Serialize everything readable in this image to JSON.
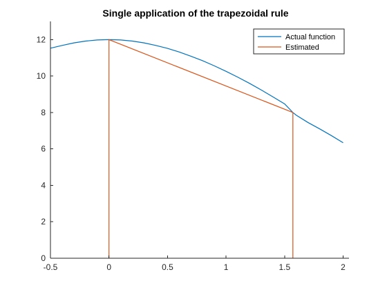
{
  "chart_data": {
    "type": "line",
    "title": "Single application of the trapezoidal rule",
    "xlabel": "",
    "ylabel": "",
    "xlim": [
      -0.5,
      2.05
    ],
    "ylim": [
      0,
      13
    ],
    "xticks": [
      -0.5,
      0,
      0.5,
      1,
      1.5,
      2
    ],
    "xtick_labels": [
      "-0.5",
      "0",
      "0.5",
      "1",
      "1.5",
      "2"
    ],
    "yticks": [
      0,
      2,
      4,
      6,
      8,
      10,
      12
    ],
    "ytick_labels": [
      "0",
      "2",
      "4",
      "6",
      "8",
      "10",
      "12"
    ],
    "grid": false,
    "legend_position": "top-right",
    "series": [
      {
        "name": "Actual function",
        "color": "#0072BD",
        "x": [
          -0.5,
          -0.4,
          -0.3,
          -0.2,
          -0.1,
          0,
          0.1,
          0.2,
          0.3,
          0.4,
          0.5,
          0.6,
          0.7,
          0.8,
          0.9,
          1.0,
          1.1,
          1.2,
          1.3,
          1.4,
          1.5,
          1.5708,
          1.6,
          1.7,
          1.8,
          1.9,
          2.0
        ],
        "y": [
          11.53,
          11.68,
          11.82,
          11.92,
          11.98,
          12.0,
          11.98,
          11.92,
          11.82,
          11.68,
          11.52,
          11.32,
          11.09,
          10.84,
          10.56,
          10.26,
          9.94,
          9.6,
          9.24,
          8.86,
          8.47,
          8.0,
          7.85,
          7.45,
          7.1,
          6.73,
          6.34
        ]
      },
      {
        "name": "Estimated",
        "color": "#D95319",
        "x": [
          0,
          0,
          1.5708,
          1.5708
        ],
        "y": [
          0,
          12,
          8,
          0
        ]
      }
    ]
  }
}
